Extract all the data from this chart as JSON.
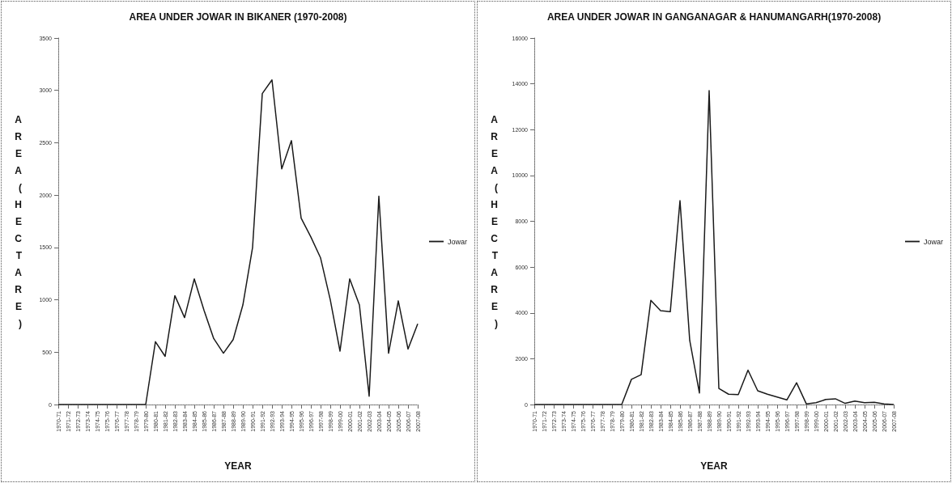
{
  "chart_data": [
    {
      "type": "line",
      "title": "AREA UNDER JOWAR IN BIKANER (1970-2008)",
      "xlabel": "YEAR",
      "ylabel": "AREA (HECTARE)",
      "categories": [
        "1970-71",
        "1971-72",
        "1972-73",
        "1973-74",
        "1974-75",
        "1975-76",
        "1976-77",
        "1977-78",
        "1978-79",
        "1979-80",
        "1980-81",
        "1981-82",
        "1982-83",
        "1983-84",
        "1984-85",
        "1985-86",
        "1986-87",
        "1987-88",
        "1988-89",
        "1989-90",
        "1990-91",
        "1991-92",
        "1992-93",
        "1993-94",
        "1994-95",
        "1995-96",
        "1996-97",
        "1997-98",
        "1998-99",
        "1999-00",
        "2000-01",
        "2001-02",
        "2002-03",
        "2003-04",
        "2004-05",
        "2005-06",
        "2006-07",
        "2007-08"
      ],
      "series": [
        {
          "name": "Jowar",
          "color": "#1a1a1a",
          "values": [
            0,
            0,
            0,
            0,
            0,
            0,
            0,
            0,
            0,
            0,
            600,
            460,
            1040,
            830,
            1200,
            900,
            630,
            490,
            620,
            950,
            1500,
            2970,
            3100,
            2250,
            2520,
            1780,
            1600,
            1400,
            1000,
            510,
            1200,
            950,
            80,
            1990,
            490,
            990,
            530,
            770
          ]
        }
      ],
      "ylim": [
        0,
        3500
      ],
      "yticks": [
        0,
        500,
        1000,
        1500,
        2000,
        2500,
        3000,
        3500
      ],
      "grid": false,
      "legend": "right",
      "marker": "none",
      "line_style": "solid"
    },
    {
      "type": "line",
      "title": "AREA UNDER JOWAR IN GANGANAGAR & HANUMANGARH(1970-2008)",
      "xlabel": "YEAR",
      "ylabel": "AREA (HECTARE)",
      "categories": [
        "1970-71",
        "1971-72",
        "1972-73",
        "1973-74",
        "1974-75",
        "1975-76",
        "1976-77",
        "1977-78",
        "1978-79",
        "1979-80",
        "1980-81",
        "1981-82",
        "1982-83",
        "1983-84",
        "1984-85",
        "1985-86",
        "1986-87",
        "1987-88",
        "1988-89",
        "1989-90",
        "1990-91",
        "1991-92",
        "1992-93",
        "1993-94",
        "1994-95",
        "1995-96",
        "1996-97",
        "1997-98",
        "1998-99",
        "1999-00",
        "2000-01",
        "2001-02",
        "2002-03",
        "2003-04",
        "2004-05",
        "2005-06",
        "2006-07",
        "2007-08"
      ],
      "series": [
        {
          "name": "Jowar",
          "color": "#1a1a1a",
          "values": [
            0,
            0,
            0,
            0,
            0,
            0,
            0,
            0,
            0,
            0,
            1100,
            1300,
            4550,
            4100,
            4050,
            8900,
            2800,
            500,
            13700,
            700,
            450,
            430,
            1500,
            600,
            450,
            330,
            200,
            950,
            30,
            80,
            220,
            250,
            50,
            150,
            80,
            100,
            30,
            0
          ]
        }
      ],
      "ylim": [
        0,
        16000
      ],
      "yticks": [
        0,
        2000,
        4000,
        6000,
        8000,
        10000,
        12000,
        14000,
        16000
      ],
      "grid": false,
      "legend": "right",
      "marker": "none",
      "line_style": "solid"
    }
  ]
}
